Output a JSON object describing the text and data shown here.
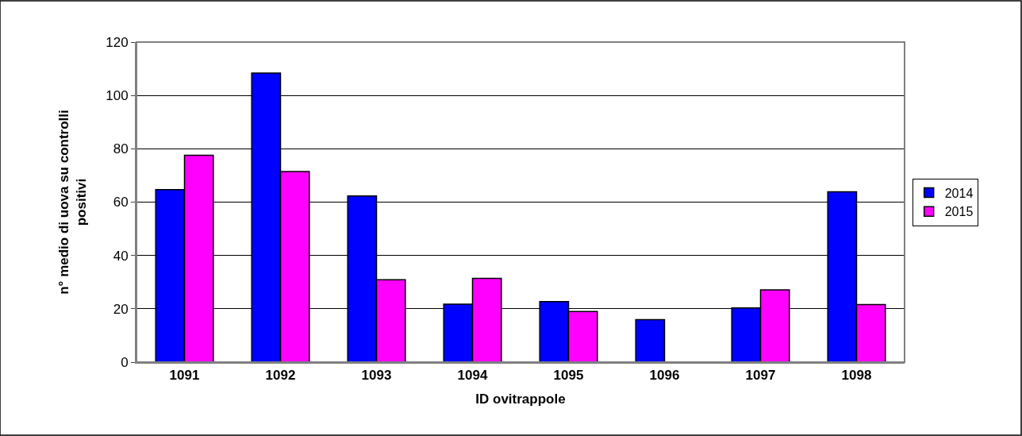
{
  "chart_data": {
    "type": "bar",
    "xlabel": "ID ovitrappole",
    "ylabel": "n° medio di uova su controlli positivi",
    "categories": [
      "1091",
      "1092",
      "1093",
      "1094",
      "1095",
      "1096",
      "1097",
      "1098"
    ],
    "series": [
      {
        "name": "2014",
        "color": "#0000ff",
        "values": [
          64.7,
          108.4,
          62.3,
          21.7,
          22.7,
          15.9,
          20.3,
          63.9
        ]
      },
      {
        "name": "2015",
        "color": "#ff00ff",
        "values": [
          77.6,
          71.5,
          30.9,
          31.4,
          19.0,
          null,
          27.1,
          21.6
        ]
      }
    ],
    "ylim": [
      0,
      120
    ],
    "yticks": [
      0,
      20,
      40,
      60,
      80,
      100,
      120
    ],
    "grid": "y",
    "legend": "right"
  }
}
